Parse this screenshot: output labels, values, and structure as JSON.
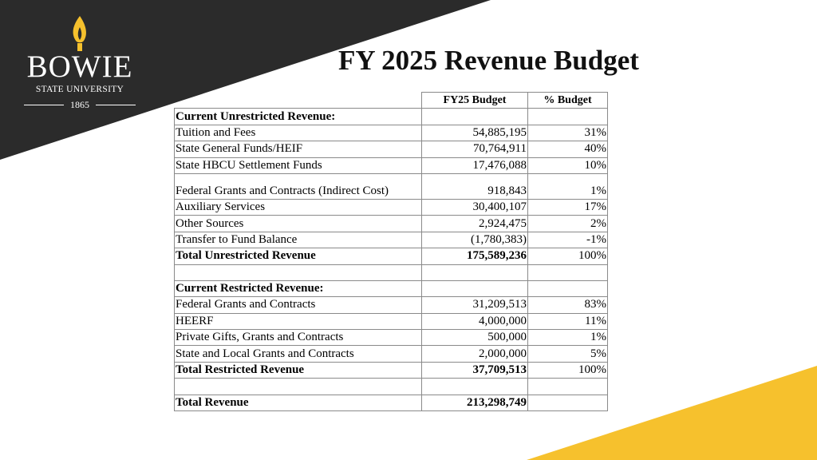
{
  "brand": {
    "name": "BOWIE",
    "subtitle": "STATE UNIVERSITY",
    "year": "1865",
    "dark_color": "#2b2b2b",
    "accent_color": "#f6c12d"
  },
  "page": {
    "title": "FY 2025 Revenue Budget"
  },
  "table": {
    "headers": [
      "",
      "FY25 Budget",
      "% Budget"
    ],
    "rows": [
      {
        "label": "Current Unrestricted Revenue:",
        "budget": "",
        "pct": "",
        "style": "bold"
      },
      {
        "label": "Tuition and Fees",
        "budget": "54,885,195",
        "pct": "31%",
        "style": ""
      },
      {
        "label": "State General Funds/HEIF",
        "budget": "70,764,911",
        "pct": "40%",
        "style": ""
      },
      {
        "label": "State HBCU Settlement Funds",
        "budget": "17,476,088",
        "pct": "10%",
        "style": ""
      },
      {
        "label": "Federal Grants and Contracts (Indirect Cost)",
        "budget": "918,843",
        "pct": "1%",
        "style": "tall"
      },
      {
        "label": "Auxiliary Services",
        "budget": "30,400,107",
        "pct": "17%",
        "style": ""
      },
      {
        "label": "Other Sources",
        "budget": "2,924,475",
        "pct": "2%",
        "style": ""
      },
      {
        "label": "Transfer to Fund Balance",
        "budget": "(1,780,383)",
        "pct": "-1%",
        "style": ""
      },
      {
        "label": "Total Unrestricted Revenue",
        "budget": "175,589,236",
        "pct": "100%",
        "style": "bold"
      },
      {
        "label": "",
        "budget": "",
        "pct": "",
        "style": ""
      },
      {
        "label": "Current Restricted Revenue:",
        "budget": "",
        "pct": "",
        "style": "bold"
      },
      {
        "label": "Federal Grants and Contracts",
        "budget": "31,209,513",
        "pct": "83%",
        "style": ""
      },
      {
        "label": "HEERF",
        "budget": "4,000,000",
        "pct": "11%",
        "style": ""
      },
      {
        "label": "Private Gifts, Grants and Contracts",
        "budget": "500,000",
        "pct": "1%",
        "style": ""
      },
      {
        "label": "State and Local Grants and Contracts",
        "budget": "2,000,000",
        "pct": "5%",
        "style": ""
      },
      {
        "label": "Total Restricted Revenue",
        "budget": "37,709,513",
        "pct": "100%",
        "style": "bold"
      },
      {
        "label": "",
        "budget": "",
        "pct": "",
        "style": ""
      },
      {
        "label": "Total Revenue",
        "budget": "213,298,749",
        "pct": "",
        "style": "bold"
      }
    ]
  }
}
